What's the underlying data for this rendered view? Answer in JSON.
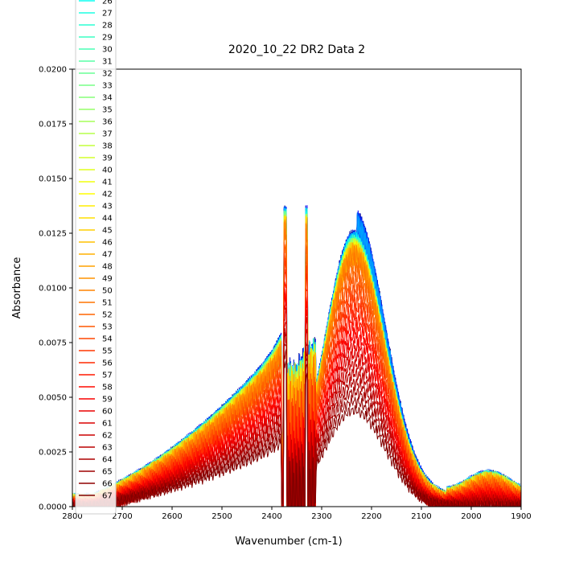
{
  "chart_data": {
    "type": "line",
    "title": "2020_10_22 DR2 Data 2",
    "xlabel": "Wavenumber (cm-1)",
    "ylabel": "Absorbance",
    "xlim": [
      2800,
      1900
    ],
    "ylim": [
      0,
      0.02
    ],
    "x_reversed": true,
    "x_ticks": [
      "2800",
      "2700",
      "2600",
      "2500",
      "2400",
      "2300",
      "2200",
      "2100",
      "2000",
      "1900"
    ],
    "y_ticks": [
      "0.0000",
      "0.0025",
      "0.0050",
      "0.0075",
      "0.0100",
      "0.0125",
      "0.0150",
      "0.0175",
      "0.0200"
    ],
    "grid": false,
    "legend": {
      "placement": "upper-left",
      "colormap": "jet",
      "entries": [
        "26",
        "27",
        "28",
        "29",
        "30",
        "31",
        "32",
        "33",
        "34",
        "35",
        "36",
        "37",
        "38",
        "39",
        "40",
        "41",
        "42",
        "43",
        "44",
        "45",
        "46",
        "47",
        "48",
        "49",
        "50",
        "51",
        "52",
        "53",
        "54",
        "55",
        "56",
        "57",
        "58",
        "59",
        "60",
        "61",
        "62",
        "63",
        "64",
        "65",
        "66",
        "67"
      ]
    },
    "series_shape": {
      "x": [
        2800,
        2750,
        2700,
        2650,
        2600,
        2550,
        2500,
        2450,
        2400,
        2380,
        2300,
        2280,
        2260,
        2240,
        2220,
        2200,
        2180,
        2150,
        2100,
        2050,
        2000,
        1950,
        1900
      ],
      "peak_max_at_2235": 0.0121,
      "peak_min_at_2235": 0.0044,
      "shoulder_max_at_2385": 0.0068,
      "shoulder_min_at_2385": 0.0027,
      "co2_spike_max": 0.0132
    }
  }
}
